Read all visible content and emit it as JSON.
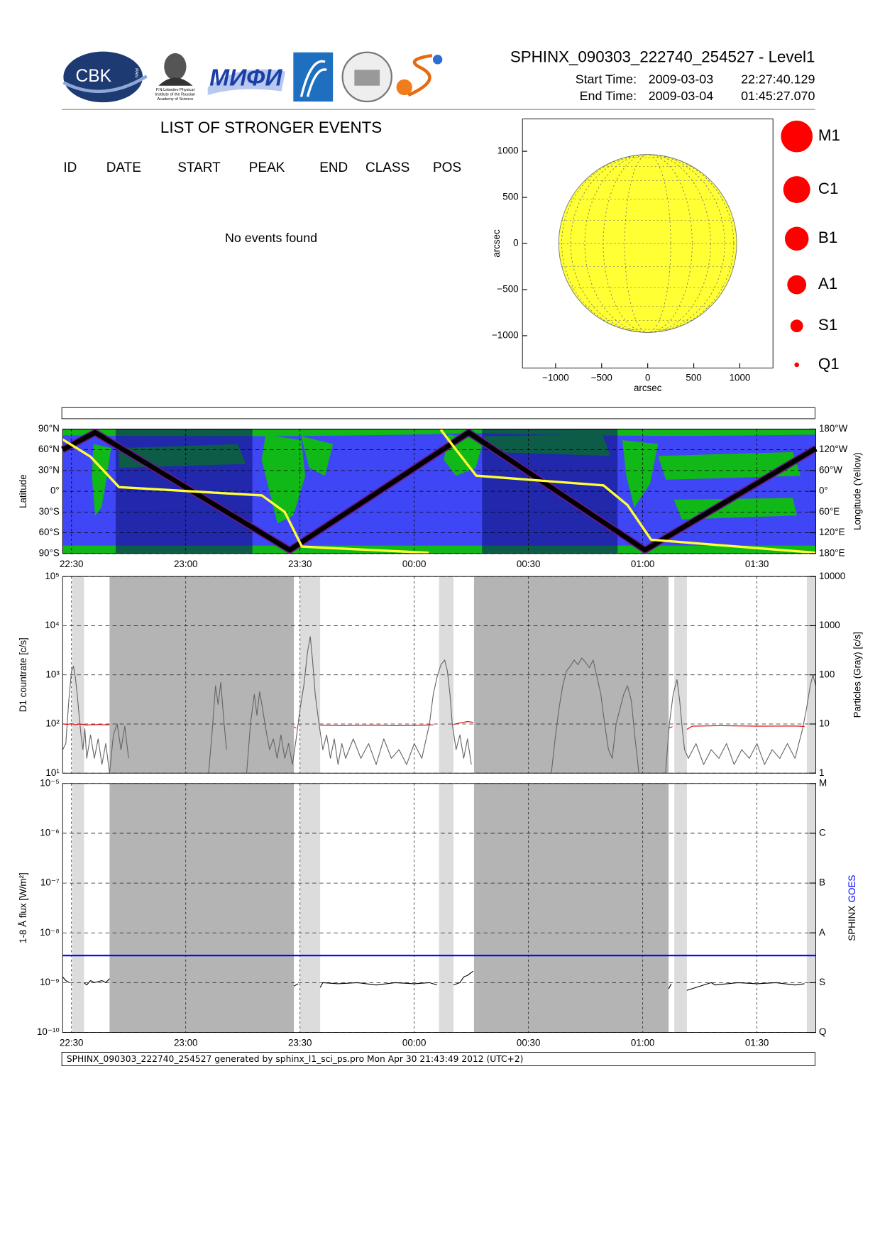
{
  "header": {
    "title": "SPHINX_090303_222740_254527 - Level1",
    "start_label": "Start Time:",
    "start_date": "2009-03-03",
    "start_time": "22:27:40.129",
    "end_label": "End Time:",
    "end_date": "2009-03-04",
    "end_time": "01:45:27.070",
    "logos": {
      "cbk": "CBK",
      "pan": "PAN",
      "lebedev": [
        "P.N.Lebedev Physical",
        "Institute of the Russian",
        "Academy of Science"
      ],
      "mifi": "МИФИ"
    }
  },
  "events": {
    "title": "LIST OF STRONGER EVENTS",
    "columns": [
      "ID",
      "DATE",
      "START",
      "PEAK",
      "END",
      "CLASS",
      "POS"
    ],
    "message": "No events found"
  },
  "footer": "SPHINX_090303_222740_254527 generated by sphinx_l1_sci_ps.pro Mon Apr 30 21:43:49 2012 (UTC+2)",
  "chart_data": [
    {
      "type": "solar-disk",
      "xlabel": "arcsec",
      "ylabel": "arcsec",
      "xlim": [
        -1360,
        1360
      ],
      "ylim": [
        -1350,
        1350
      ],
      "xticks": [
        {
          "value": -1000,
          "label": "−1000"
        },
        {
          "value": -500,
          "label": "−500"
        },
        0,
        500,
        1000
      ],
      "yticks": [
        {
          "value": -1000,
          "label": "−1000"
        },
        {
          "value": -500,
          "label": "−500"
        },
        0,
        500,
        1000
      ],
      "radius": 966,
      "color": "#ffff33",
      "classes": [
        "M1",
        "C1",
        "B1",
        "A1",
        "S1",
        "Q1"
      ],
      "class_color": "#ff0000"
    },
    {
      "type": "orbit-map",
      "ylabel": "Latitude",
      "y2label": "Longitude (Yellow)",
      "xlim": [
        27.67,
        225.45
      ],
      "xticks": [
        {
          "value": 30,
          "label": "22:30"
        },
        {
          "value": 60,
          "label": "23:00"
        },
        {
          "value": 90,
          "label": "23:30"
        },
        {
          "value": 120,
          "label": "00:00"
        },
        {
          "value": 150,
          "label": "00:30"
        },
        {
          "value": 180,
          "label": "01:00"
        },
        {
          "value": 210,
          "label": "01:30"
        }
      ],
      "ylim": [
        -90,
        90
      ],
      "yticks": [
        {
          "value": -90,
          "label": "90°S"
        },
        {
          "value": -60,
          "label": "60°S"
        },
        {
          "value": -30,
          "label": "30°S"
        },
        {
          "value": 0,
          "label": "0°"
        },
        {
          "value": 30,
          "label": "30°N"
        },
        {
          "value": 60,
          "label": "60°N"
        },
        {
          "value": 90,
          "label": "90°N"
        }
      ],
      "y2lim": [
        180,
        -180
      ],
      "y2ticks": [
        {
          "value": -180,
          "label": "180°W"
        },
        {
          "value": -120,
          "label": "120°W"
        },
        {
          "value": -60,
          "label": "60°W"
        },
        {
          "value": 0,
          "label": "0°"
        },
        {
          "value": 60,
          "label": "60°E"
        },
        {
          "value": 120,
          "label": "120°E"
        },
        {
          "value": 180,
          "label": "180°E"
        }
      ],
      "night": [
        {
          "from": 41.6,
          "to": 77.5
        },
        {
          "from": 137.8,
          "to": 173.4
        }
      ],
      "series": [
        {
          "color": "#000000",
          "x": [
            27.67,
            36.2,
            87.3,
            134.3,
            180.6,
            225.45
          ],
          "values": [
            60,
            85,
            -85,
            85,
            -85,
            62
          ]
        },
        {
          "color": "#ffff33",
          "axis": "y2",
          "x": [
            27.67,
            35,
            42.5,
            80,
            86,
            90.5,
            123.8,
            125,
            127,
            131,
            136.3,
            169.7,
            176,
            182.2,
            225.45
          ],
          "values": [
            -150,
            -100,
            -12,
            12,
            60,
            160,
            178,
            null,
            -178,
            -120,
            -45,
            -17,
            40,
            140,
            178
          ]
        }
      ]
    },
    {
      "type": "countrate",
      "ylabel": "D1 countrate [c/s]",
      "y2label": "Particles (Gray) [c/s]",
      "log": true,
      "xlim": [
        27.67,
        225.45
      ],
      "xgrid": [
        30,
        60,
        90,
        120,
        150,
        180,
        210
      ],
      "ylim": [
        10,
        100000
      ],
      "yticks": [
        {
          "value": 10,
          "label": "10¹"
        },
        {
          "value": 100,
          "label": "10²"
        },
        {
          "value": 1000,
          "label": "10³"
        },
        {
          "value": 10000,
          "label": "10⁴"
        },
        {
          "value": 100000,
          "label": "10⁵"
        }
      ],
      "y2lim": [
        1,
        10000
      ],
      "y2ticks": [
        1,
        10,
        100,
        1000,
        10000
      ],
      "shading": [
        {
          "from": 30.2,
          "to": 33.3,
          "color": "#dcdcdc"
        },
        {
          "from": 40,
          "to": 88.4,
          "color": "#b4b4b4"
        },
        {
          "from": 90,
          "to": 95.3,
          "color": "#dcdcdc"
        },
        {
          "from": 126.5,
          "to": 130.3,
          "color": "#dcdcdc"
        },
        {
          "from": 135.7,
          "to": 186.8,
          "color": "#b4b4b4"
        },
        {
          "from": 188.3,
          "to": 191.6,
          "color": "#dcdcdc"
        },
        {
          "from": 223.1,
          "to": 225.45,
          "color": "#dcdcdc"
        }
      ],
      "series": [
        {
          "color": "#666666",
          "axis": "y2",
          "x": [
            27.7,
            28.5,
            29.3,
            30,
            30.5,
            31,
            31.5,
            32,
            32.5,
            33,
            33.5,
            34,
            35,
            36,
            37,
            38,
            39,
            40,
            41,
            42,
            43,
            44,
            45,
            46,
            66,
            67,
            67.8,
            68.5,
            69.2,
            70,
            70.7,
            72,
            76,
            77,
            78,
            78.7,
            79.4,
            80.2,
            81,
            82,
            83,
            84,
            85,
            86,
            87,
            88,
            89,
            90,
            91,
            92,
            92.7,
            93.3,
            94,
            95,
            96,
            97,
            98,
            99,
            100,
            101,
            102,
            104,
            106,
            108,
            110,
            112,
            114,
            116,
            118,
            120,
            122,
            124,
            125,
            126,
            127,
            128,
            128.7,
            129.4,
            130,
            131,
            132,
            133,
            134,
            135,
            136,
            156,
            157,
            158,
            159,
            160,
            161,
            162,
            163,
            164,
            165,
            166,
            167,
            168,
            169,
            170,
            171,
            172,
            173,
            174,
            175,
            176,
            177,
            178,
            179,
            180,
            186,
            187,
            188,
            189,
            189.7,
            190.4,
            191,
            192,
            194,
            196,
            198,
            200,
            202,
            204,
            206,
            208,
            210,
            212,
            214,
            216,
            218,
            220,
            222,
            223,
            224,
            224.7,
            225.45
          ],
          "values": [
            3,
            4,
            30,
            120,
            150,
            90,
            40,
            15,
            6,
            3,
            8,
            2,
            6,
            2,
            5,
            1.5,
            4,
            1,
            6,
            10,
            3,
            9,
            2,
            null,
            1,
            8,
            60,
            25,
            70,
            12,
            3,
            null,
            1,
            10,
            40,
            15,
            45,
            20,
            8,
            3,
            5,
            2,
            6,
            2,
            4,
            1.5,
            5,
            20,
            60,
            300,
            600,
            200,
            40,
            10,
            3,
            6,
            2,
            5,
            1.5,
            4,
            2,
            5,
            2,
            4,
            1.5,
            5,
            2,
            3,
            1.5,
            4,
            2,
            10,
            40,
            90,
            160,
            200,
            120,
            40,
            10,
            3,
            6,
            2,
            5,
            1.5,
            null,
            1,
            5,
            20,
            60,
            120,
            150,
            200,
            160,
            220,
            180,
            140,
            200,
            90,
            40,
            10,
            3,
            2,
            10,
            20,
            40,
            60,
            30,
            5,
            1,
            null,
            1,
            10,
            40,
            80,
            30,
            8,
            3,
            2,
            4,
            1.5,
            3,
            2,
            4,
            1.5,
            3,
            2,
            4,
            1.5,
            3,
            2,
            4,
            2,
            8,
            20,
            60,
            100,
            60
          ]
        },
        {
          "color": "#e00000",
          "x": [
            27.7,
            29,
            30,
            31,
            32,
            33,
            34,
            35,
            36,
            37,
            38,
            39,
            40,
            41,
            88.4,
            89,
            90,
            95.3,
            100,
            105,
            110,
            115,
            120,
            125,
            126,
            130.3,
            132,
            134,
            135.5,
            136,
            186.8,
            187.8,
            189,
            191.6,
            193,
            200,
            210,
            220,
            222.5
          ],
          "values": [
            100,
            98,
            102,
            96,
            100,
            98,
            95,
            97,
            96,
            98,
            97,
            96,
            97,
            null,
            88,
            82,
            null,
            95,
            93,
            94,
            95,
            92,
            94,
            96,
            null,
            98,
            105,
            112,
            108,
            null,
            82,
            88,
            null,
            78,
            90,
            92,
            90,
            91,
            89
          ]
        }
      ]
    },
    {
      "type": "flux",
      "ylabel": "1-8 Å flux [W/m²]",
      "log": true,
      "xlim": [
        27.67,
        225.45
      ],
      "xticks": [
        {
          "value": 30,
          "label": "22:30"
        },
        {
          "value": 60,
          "label": "23:00"
        },
        {
          "value": 90,
          "label": "23:30"
        },
        {
          "value": 120,
          "label": "00:00"
        },
        {
          "value": 150,
          "label": "00:30"
        },
        {
          "value": 180,
          "label": "01:00"
        },
        {
          "value": 210,
          "label": "01:30"
        }
      ],
      "ylim": [
        1e-10,
        1e-05
      ],
      "yticks": [
        {
          "value": 1e-10,
          "label": "10⁻¹⁰"
        },
        {
          "value": 1e-09,
          "label": "10⁻⁹"
        },
        {
          "value": 1e-08,
          "label": "10⁻⁸"
        },
        {
          "value": 1e-07,
          "label": "10⁻⁷"
        },
        {
          "value": 1e-06,
          "label": "10⁻⁶"
        },
        {
          "value": 1e-05,
          "label": "10⁻⁵"
        }
      ],
      "y2ticks": [
        {
          "value": 1e-10,
          "label": "Q"
        },
        {
          "value": 1e-09,
          "label": "S"
        },
        {
          "value": 1e-08,
          "label": "A"
        },
        {
          "value": 1e-07,
          "label": "B"
        },
        {
          "value": 1e-06,
          "label": "C"
        },
        {
          "value": 1e-05,
          "label": "M"
        }
      ],
      "shading": [
        {
          "from": 30.2,
          "to": 33.3,
          "color": "#dcdcdc"
        },
        {
          "from": 40,
          "to": 88.4,
          "color": "#b4b4b4"
        },
        {
          "from": 90,
          "to": 95.3,
          "color": "#dcdcdc"
        },
        {
          "from": 126.5,
          "to": 130.3,
          "color": "#dcdcdc"
        },
        {
          "from": 135.7,
          "to": 186.8,
          "color": "#b4b4b4"
        },
        {
          "from": 188.3,
          "to": 191.6,
          "color": "#dcdcdc"
        },
        {
          "from": 223.1,
          "to": 225.45,
          "color": "#dcdcdc"
        }
      ],
      "series": [
        {
          "name": "SPHINX",
          "color": "#000000",
          "x": [
            27.7,
            28.5,
            29.5,
            30,
            33.3,
            34,
            35,
            36,
            37,
            38,
            39,
            40,
            40.5,
            88.4,
            89.5,
            90,
            95.3,
            96,
            100,
            105,
            110,
            115,
            120,
            124,
            126,
            126.5,
            130.3,
            132,
            133,
            134,
            135.5,
            136,
            186.8,
            187.5,
            188,
            191.6,
            198,
            199,
            205,
            210,
            215,
            220,
            222.5
          ],
          "values": [
            1.3e-09,
            1.1e-09,
            1e-09,
            null,
            1e-09,
            9e-10,
            1.1e-09,
            1e-09,
            1.05e-09,
            1.1e-09,
            1e-09,
            1.2e-09,
            null,
            8.5e-10,
            9.5e-10,
            null,
            8e-10,
            1e-09,
            9.5e-10,
            1e-09,
            9e-10,
            1e-09,
            9.5e-10,
            1e-09,
            9e-10,
            null,
            9e-10,
            1e-09,
            1.3e-09,
            1.4e-09,
            1.7e-09,
            null,
            7.5e-10,
            9.5e-10,
            null,
            7e-10,
            1e-09,
            9e-10,
            1e-09,
            9.5e-10,
            1e-09,
            9e-10,
            9.5e-10
          ]
        },
        {
          "name": "GOES",
          "color": "#0000ff",
          "x": [
            27.67,
            225.45
          ],
          "values": [
            3.5e-09,
            3.5e-09
          ]
        }
      ]
    }
  ]
}
